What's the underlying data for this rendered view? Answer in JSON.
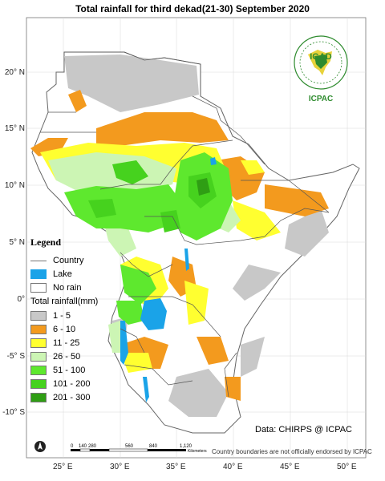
{
  "title": "Total rainfall for  third dekad(21-30) September 2020",
  "map": {
    "lat_labels": [
      "20° N",
      "15° N",
      "10° N",
      "5° N",
      "0°",
      "-5° S",
      "-10° S"
    ],
    "lon_labels": [
      "25° E",
      "30° E",
      "35° E",
      "40° E",
      "45° E",
      "50° E"
    ]
  },
  "legend": {
    "title": "Legend",
    "country_label": "Country",
    "lake_label": "Lake",
    "norain_label": "No rain",
    "rain_heading": "Total rainfall(mm)",
    "classes": [
      {
        "label": "1 - 5",
        "color": "#c8c8c8"
      },
      {
        "label": "6 - 10",
        "color": "#f39a1e"
      },
      {
        "label": "11 - 25",
        "color": "#ffff30"
      },
      {
        "label": "26 - 50",
        "color": "#ccf5b4"
      },
      {
        "label": "51 - 100",
        "color": "#5ee82e"
      },
      {
        "label": "101 - 200",
        "color": "#46d21e"
      },
      {
        "label": "201 - 300",
        "color": "#2f9e14"
      }
    ],
    "lake_color": "#1aa3e8"
  },
  "scalebar": {
    "ticks": [
      "0",
      "140",
      "280",
      "560",
      "840",
      "1,120"
    ],
    "unit": "Kilometers"
  },
  "data_credit": "Data: CHIRPS @ ICPAC",
  "disclaimer": "Country boundaries are not officially endorsed by ICPAC",
  "logo": {
    "main": "IGAD",
    "sub": "ICPAC",
    "ring_text": "INTERGOVERNMENTAL AUTHORITY ON DEVELOPMENT"
  }
}
